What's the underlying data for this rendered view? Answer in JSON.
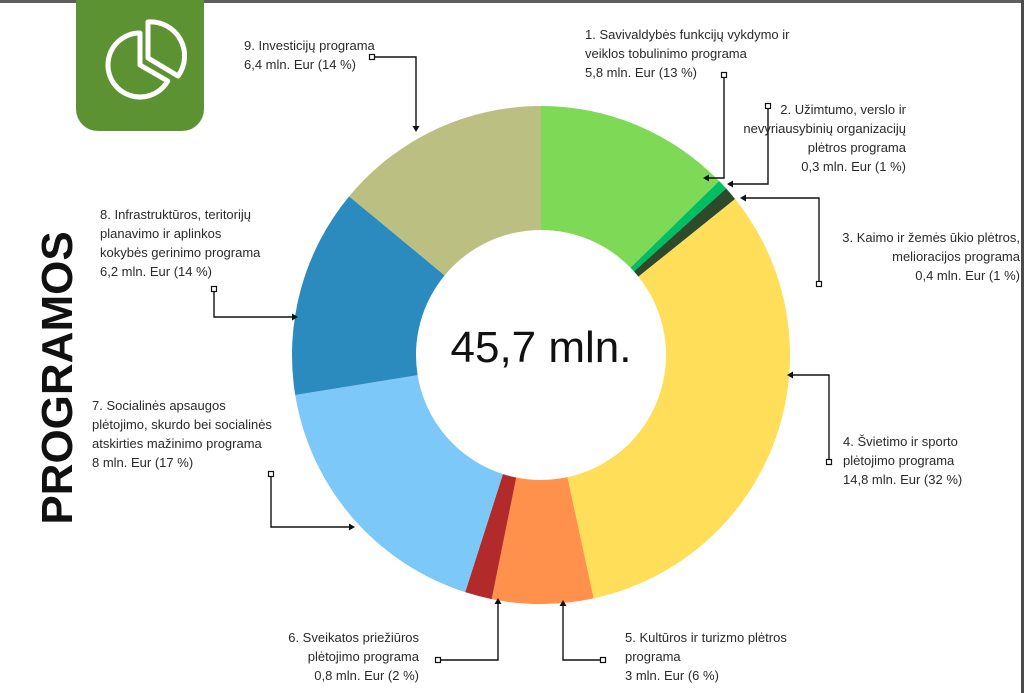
{
  "page": {
    "side_title": "PROGRAMOS",
    "logo_icon": "pie-chart-icon"
  },
  "chart_data": {
    "type": "pie",
    "donut": true,
    "center_label": "45,7 mln.",
    "start_angle_deg": 0,
    "slices": [
      {
        "id": 1,
        "lines": [
          "1. Savivaldybės funkcijų vykdymo ir",
          "veiklos tobulinimo programa",
          "5,8 mln. Eur (13 %)"
        ],
        "value": 5.8,
        "percent": 13,
        "color": "#7ed957"
      },
      {
        "id": 2,
        "lines": [
          "2. Užimtumo, verslo ir",
          "nevyriausybinių organizacijų",
          "plėtros programa",
          "0,3 mln. Eur (1 %)"
        ],
        "value": 0.3,
        "percent": 1,
        "color": "#00bf63"
      },
      {
        "id": 3,
        "lines": [
          "3. Kaimo ir žemės ūkio plėtros,",
          "melioracijos  programa",
          "0,4 mln. Eur (1 %)"
        ],
        "value": 0.4,
        "percent": 1,
        "color": "#2d4a2b"
      },
      {
        "id": 4,
        "lines": [
          "4. Švietimo ir sporto",
          "plėtojimo programa",
          "14,8 mln. Eur (32 %)"
        ],
        "value": 14.8,
        "percent": 32,
        "color": "#ffde59"
      },
      {
        "id": 5,
        "lines": [
          "5. Kultūros ir turizmo plėtros",
          "programa",
          "3 mln. Eur (6 %)"
        ],
        "value": 3.0,
        "percent": 6,
        "color": "#ff914d"
      },
      {
        "id": 6,
        "lines": [
          "6. Sveikatos priežiūros",
          "plėtojimo programa",
          "0,8 mln. Eur (2 %)"
        ],
        "value": 0.8,
        "percent": 2,
        "color": "#b22a2a"
      },
      {
        "id": 7,
        "lines": [
          "7. Socialinės apsaugos",
          "plėtojimo, skurdo bei  socialinės",
          "atskirties mažinimo programa",
          "8 mln. Eur (17 %)"
        ],
        "value": 8.0,
        "percent": 17,
        "color": "#7cc8f8"
      },
      {
        "id": 8,
        "lines": [
          "8. Infrastruktūros, teritorijų",
          "planavimo ir aplinkos",
          "kokybės gerinimo programa",
          "6,2 mln. Eur (14 %)"
        ],
        "value": 6.2,
        "percent": 14,
        "color": "#2b8abe"
      },
      {
        "id": 9,
        "lines": [
          "9. Investicijų programa",
          "6,4 mln. Eur (14 %)"
        ],
        "value": 6.4,
        "percent": 14,
        "color": "#bbbf82"
      }
    ]
  }
}
